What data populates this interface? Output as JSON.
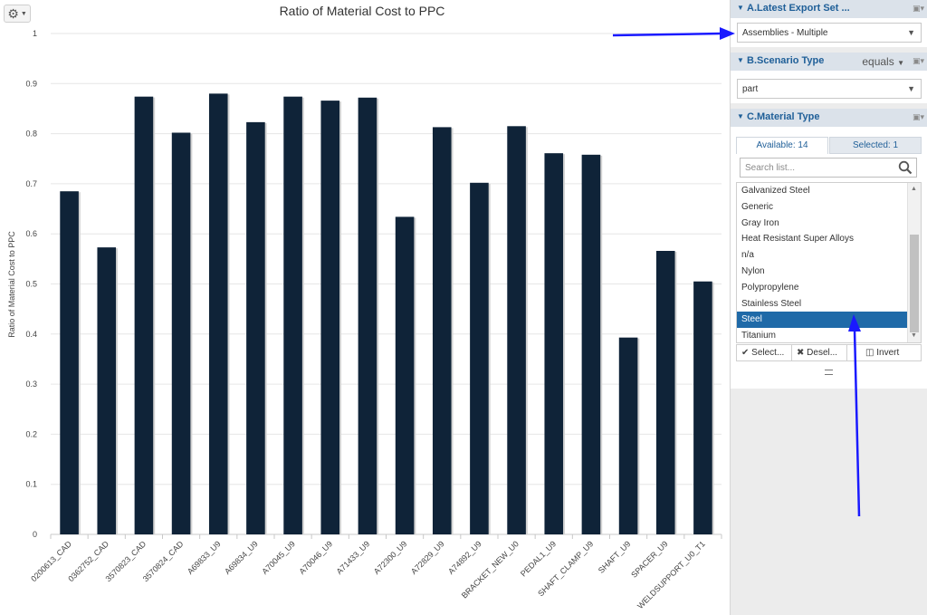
{
  "toolbar": {
    "gear_icon": "gear-icon"
  },
  "chart_data": {
    "type": "bar",
    "title": "Ratio of Material Cost to PPC",
    "xlabel": "",
    "ylabel": "Ratio of Material Cost to PPC",
    "ylim": [
      0,
      1
    ],
    "yticks": [
      "0",
      "0.1",
      "0.2",
      "0.3",
      "0.4",
      "0.5",
      "0.6",
      "0.7",
      "0.8",
      "0.9",
      "1"
    ],
    "grid": true,
    "bar_color": "#0f2338",
    "categories": [
      "0200613_CAD",
      "0362752_CAD",
      "3570823_CAD",
      "3570824_CAD",
      "A69833_U9",
      "A69834_U9",
      "A70045_U9",
      "A70046_U9",
      "A71433_U9",
      "A72300_U9",
      "A72829_U9",
      "A74892_U9",
      "BRACKET_NEW_U0",
      "PEDAL1_U9",
      "SHAFT_CLAMP_U9",
      "SHAFT_U9",
      "SPACER_U9",
      "WELDSUPPORT_U0_T1"
    ],
    "values": [
      0.685,
      0.573,
      0.874,
      0.802,
      0.88,
      0.823,
      0.874,
      0.866,
      0.872,
      0.634,
      0.813,
      0.702,
      0.815,
      0.761,
      0.758,
      0.393,
      0.566,
      0.505
    ]
  },
  "panel": {
    "export": {
      "title": "A.Latest Export Set ...",
      "value": "Assemblies - Multiple"
    },
    "scenario": {
      "title": "B.Scenario Type",
      "operator": "equals",
      "value": "part"
    },
    "material": {
      "title": "C.Material Type",
      "tab_available": "Available: 14",
      "tab_selected": "Selected: 1",
      "search_placeholder": "Search list...",
      "items": [
        "Galvanized Steel",
        "Generic",
        "Gray Iron",
        "Heat Resistant Super Alloys",
        "n/a",
        "Nylon",
        "Polypropylene",
        "Stainless Steel",
        "Steel",
        "Titanium"
      ],
      "selected_index": 8,
      "btn_select": "Select...",
      "btn_deselect": "Desel...",
      "btn_invert": "Invert"
    }
  },
  "colors": {
    "accent": "#1f5f98",
    "selection": "#1f6aa8",
    "arrow": "#1a1aff"
  }
}
